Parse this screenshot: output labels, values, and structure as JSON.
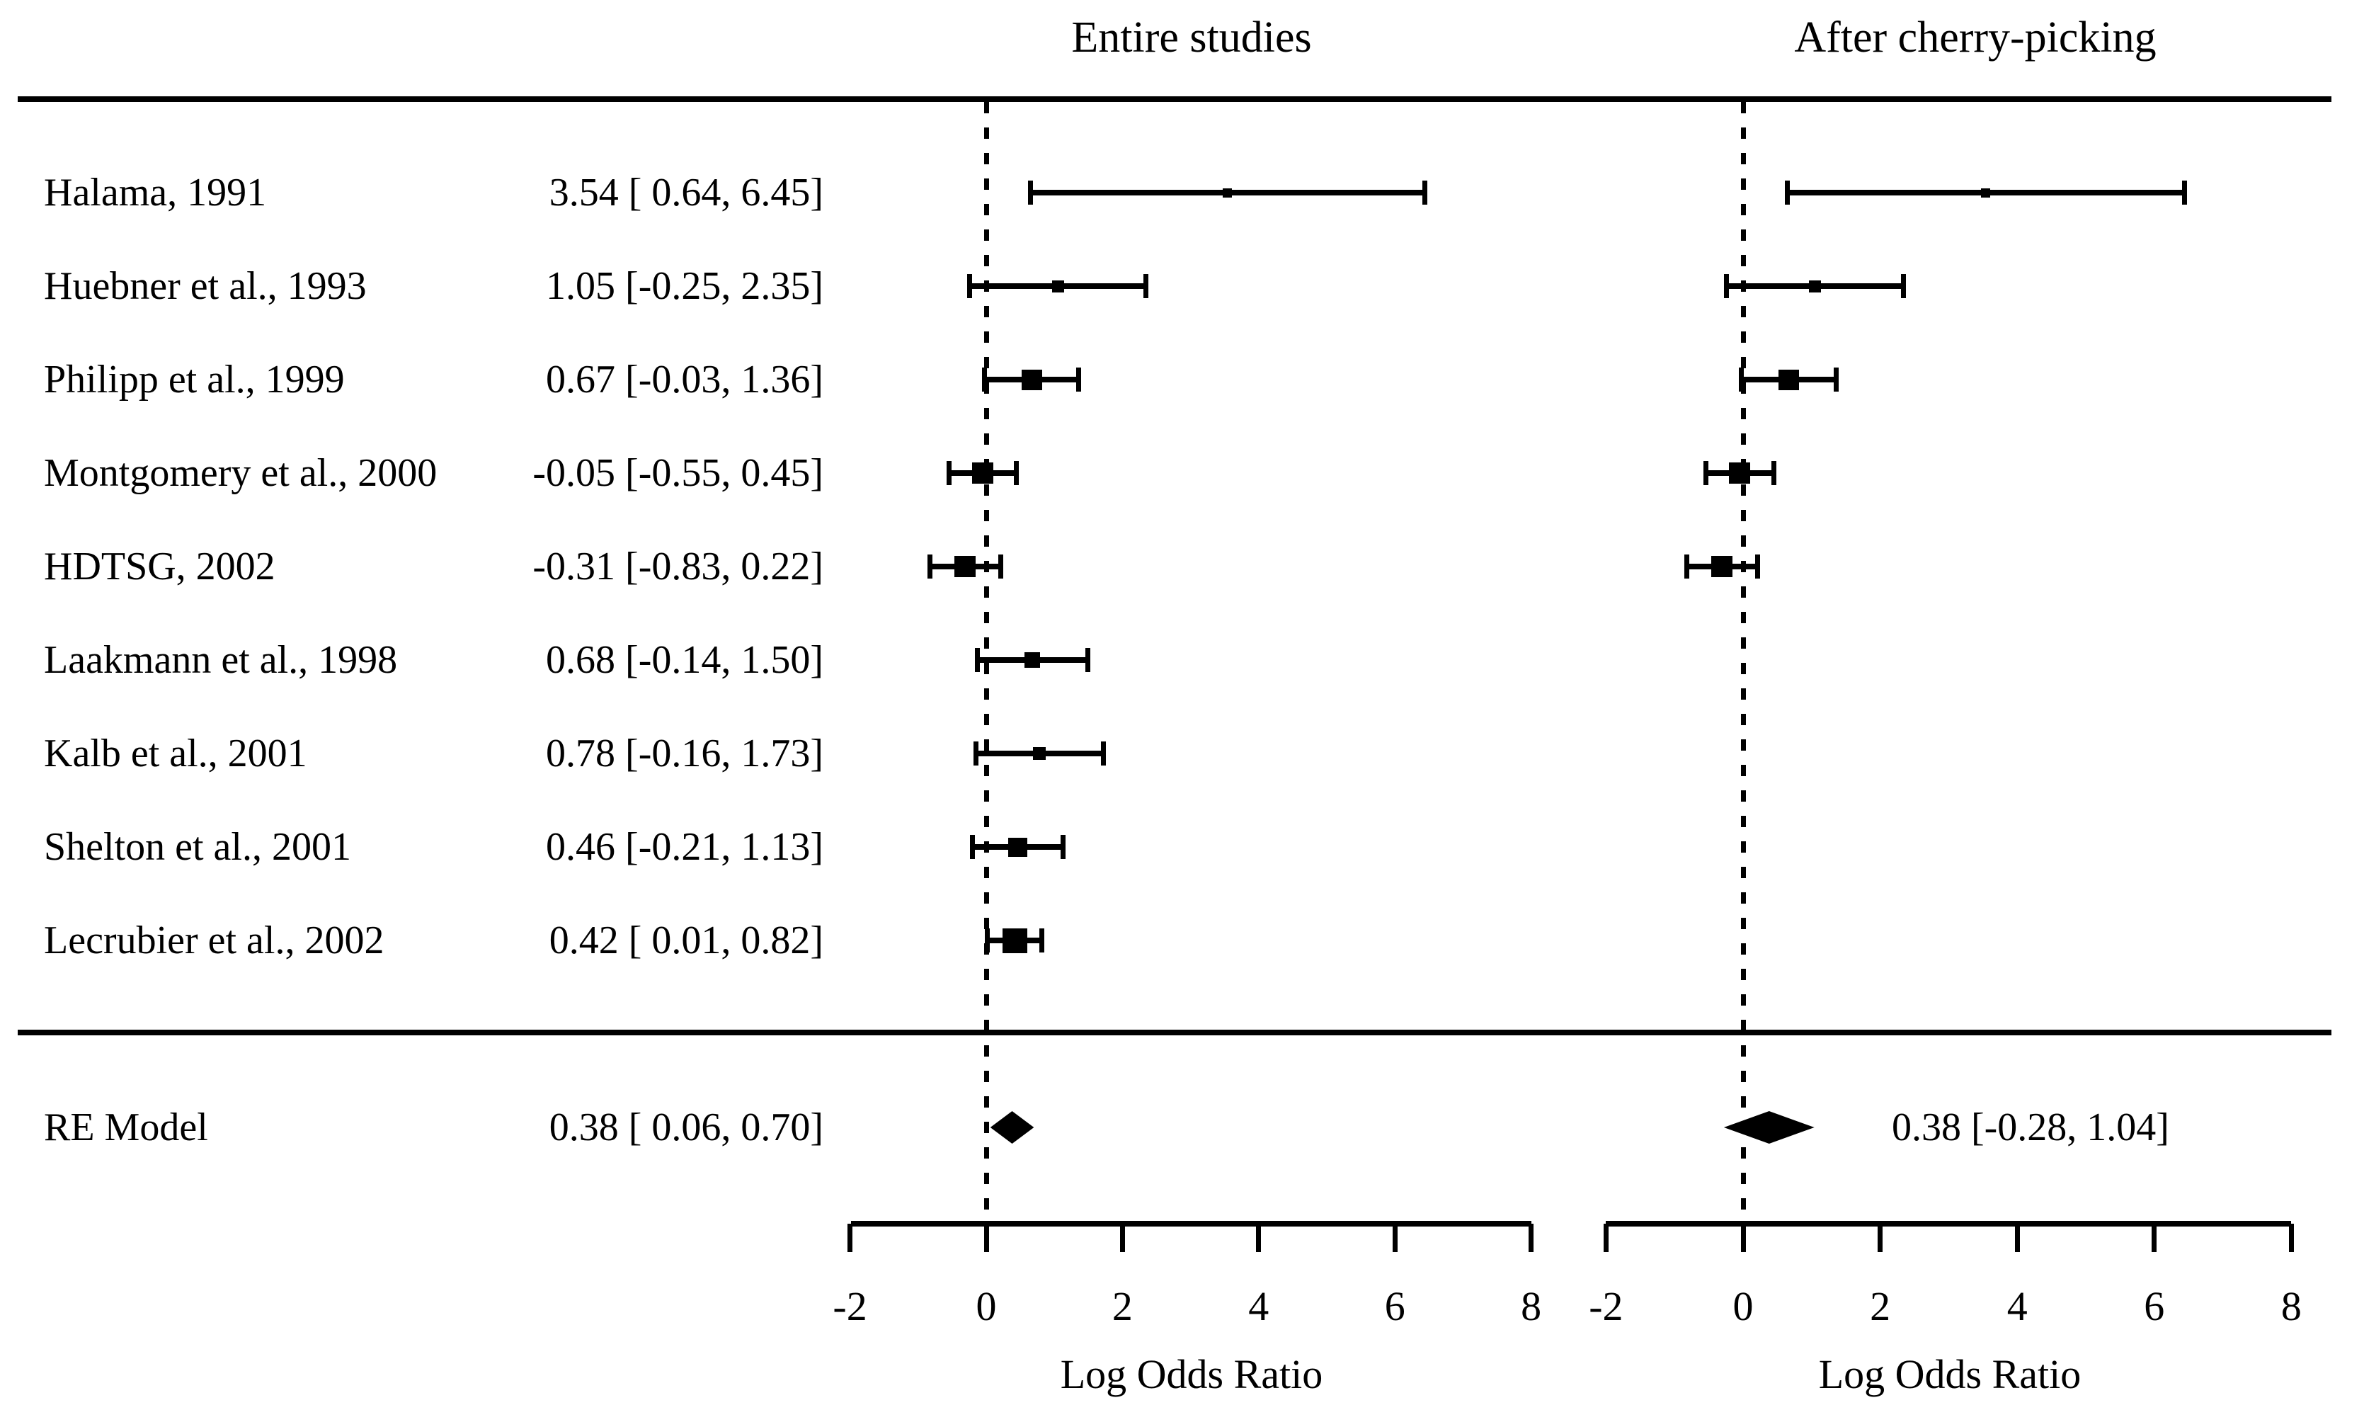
{
  "colors": {
    "foreground": "#000000",
    "background": "#ffffff"
  },
  "chart_data": {
    "type": "forest",
    "panels": [
      {
        "title": "Entire studies",
        "xlabel": "Log Odds Ratio",
        "xticks": [
          -2,
          0,
          2,
          4,
          6,
          8
        ],
        "xlim": [
          -2,
          8
        ],
        "zero_line": 0
      },
      {
        "title": "After cherry-picking",
        "xlabel": "Log Odds Ratio",
        "xticks": [
          -2,
          0,
          2,
          4,
          6,
          8
        ],
        "xlim": [
          -2,
          8
        ],
        "zero_line": 0
      }
    ],
    "studies": [
      {
        "label": "Halama, 1991",
        "estimate": 3.54,
        "ci_low": 0.64,
        "ci_high": 6.45,
        "annotation": "3.54 [ 0.64, 6.45]",
        "marker_size": 13,
        "in_cherry_picked": true
      },
      {
        "label": "Huebner et al., 1993",
        "estimate": 1.05,
        "ci_low": -0.25,
        "ci_high": 2.35,
        "annotation": "1.05 [-0.25, 2.35]",
        "marker_size": 17,
        "in_cherry_picked": true
      },
      {
        "label": "Philipp et al., 1999",
        "estimate": 0.67,
        "ci_low": -0.03,
        "ci_high": 1.36,
        "annotation": "0.67 [-0.03, 1.36]",
        "marker_size": 29,
        "in_cherry_picked": true
      },
      {
        "label": "Montgomery et al., 2000",
        "estimate": -0.05,
        "ci_low": -0.55,
        "ci_high": 0.45,
        "annotation": "-0.05 [-0.55, 0.45]",
        "marker_size": 30,
        "in_cherry_picked": true
      },
      {
        "label": "HDTSG, 2002",
        "estimate": -0.31,
        "ci_low": -0.83,
        "ci_high": 0.22,
        "annotation": "-0.31 [-0.83, 0.22]",
        "marker_size": 30,
        "in_cherry_picked": true
      },
      {
        "label": "Laakmann et al., 1998",
        "estimate": 0.68,
        "ci_low": -0.14,
        "ci_high": 1.5,
        "annotation": "0.68 [-0.14, 1.50]",
        "marker_size": 22,
        "in_cherry_picked": false
      },
      {
        "label": "Kalb et al., 2001",
        "estimate": 0.78,
        "ci_low": -0.16,
        "ci_high": 1.73,
        "annotation": "0.78 [-0.16, 1.73]",
        "marker_size": 18,
        "in_cherry_picked": false
      },
      {
        "label": "Shelton et al., 2001",
        "estimate": 0.46,
        "ci_low": -0.21,
        "ci_high": 1.13,
        "annotation": "0.46 [-0.21, 1.13]",
        "marker_size": 27,
        "in_cherry_picked": false
      },
      {
        "label": "Lecrubier et al., 2002",
        "estimate": 0.42,
        "ci_low": 0.01,
        "ci_high": 0.82,
        "annotation": "0.42 [ 0.01, 0.82]",
        "marker_size": 35,
        "in_cherry_picked": false
      }
    ],
    "summary": {
      "label": "RE Model",
      "entire": {
        "estimate": 0.38,
        "ci_low": 0.06,
        "ci_high": 0.7,
        "annotation": "0.38 [ 0.06, 0.70]"
      },
      "cherry_picked": {
        "estimate": 0.38,
        "ci_low": -0.28,
        "ci_high": 1.04,
        "annotation": "0.38 [-0.28, 1.04]"
      }
    }
  }
}
